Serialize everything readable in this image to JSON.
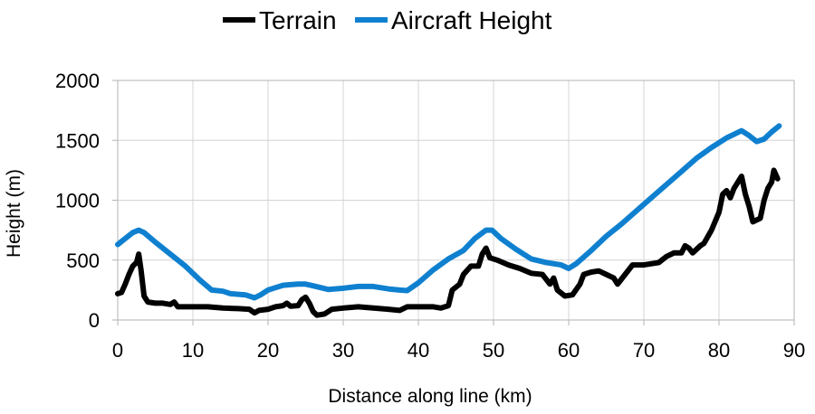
{
  "chart_data": {
    "type": "line",
    "title": "",
    "xlabel": "Distance along line (km)",
    "ylabel": "Height (m)",
    "xlim": [
      0,
      90
    ],
    "ylim": [
      0,
      2000
    ],
    "xticks": [
      "0",
      "10",
      "20",
      "30",
      "40",
      "50",
      "60",
      "70",
      "80",
      "90"
    ],
    "yticks": [
      "0",
      "500",
      "1000",
      "1500",
      "2000"
    ],
    "grid": true,
    "legend_position": "top",
    "series": [
      {
        "name": "Terrain",
        "color": "#000000",
        "points": [
          [
            0,
            220
          ],
          [
            0.5,
            230
          ],
          [
            1,
            300
          ],
          [
            1.5,
            380
          ],
          [
            2,
            450
          ],
          [
            2.5,
            480
          ],
          [
            2.8,
            550
          ],
          [
            3.1,
            420
          ],
          [
            3.5,
            200
          ],
          [
            4,
            150
          ],
          [
            5,
            140
          ],
          [
            6,
            140
          ],
          [
            7,
            130
          ],
          [
            7.5,
            150
          ],
          [
            8,
            110
          ],
          [
            10,
            110
          ],
          [
            12,
            110
          ],
          [
            14,
            100
          ],
          [
            16,
            95
          ],
          [
            17.5,
            90
          ],
          [
            18.2,
            60
          ],
          [
            18.8,
            80
          ],
          [
            20,
            90
          ],
          [
            21,
            110
          ],
          [
            22,
            120
          ],
          [
            22.5,
            140
          ],
          [
            23,
            115
          ],
          [
            24,
            120
          ],
          [
            24.5,
            170
          ],
          [
            25,
            190
          ],
          [
            25.5,
            140
          ],
          [
            26,
            70
          ],
          [
            26.5,
            40
          ],
          [
            27.5,
            50
          ],
          [
            28.5,
            90
          ],
          [
            30,
            100
          ],
          [
            32,
            110
          ],
          [
            34,
            100
          ],
          [
            36,
            90
          ],
          [
            37.5,
            80
          ],
          [
            38.5,
            110
          ],
          [
            40,
            110
          ],
          [
            42,
            110
          ],
          [
            43,
            100
          ],
          [
            44,
            120
          ],
          [
            44.5,
            250
          ],
          [
            45.5,
            300
          ],
          [
            46,
            380
          ],
          [
            47,
            450
          ],
          [
            48,
            450
          ],
          [
            48.5,
            550
          ],
          [
            49,
            600
          ],
          [
            49.5,
            520
          ],
          [
            50.5,
            500
          ],
          [
            52,
            460
          ],
          [
            53.5,
            430
          ],
          [
            55,
            390
          ],
          [
            56.5,
            380
          ],
          [
            57.5,
            300
          ],
          [
            58,
            350
          ],
          [
            58.5,
            250
          ],
          [
            59.5,
            200
          ],
          [
            60.5,
            210
          ],
          [
            61.5,
            300
          ],
          [
            62,
            380
          ],
          [
            63,
            400
          ],
          [
            64,
            410
          ],
          [
            65,
            380
          ],
          [
            66,
            350
          ],
          [
            66.5,
            300
          ],
          [
            67.5,
            380
          ],
          [
            68.5,
            460
          ],
          [
            70,
            460
          ],
          [
            72,
            480
          ],
          [
            73,
            530
          ],
          [
            74,
            560
          ],
          [
            75,
            560
          ],
          [
            75.5,
            620
          ],
          [
            76,
            600
          ],
          [
            76.5,
            560
          ],
          [
            77.5,
            620
          ],
          [
            78,
            640
          ],
          [
            79,
            750
          ],
          [
            80,
            900
          ],
          [
            80.5,
            1050
          ],
          [
            81,
            1080
          ],
          [
            81.5,
            1020
          ],
          [
            82,
            1100
          ],
          [
            82.5,
            1150
          ],
          [
            83,
            1200
          ],
          [
            83.5,
            1050
          ],
          [
            84,
            950
          ],
          [
            84.5,
            820
          ],
          [
            85.5,
            850
          ],
          [
            86,
            1000
          ],
          [
            86.5,
            1100
          ],
          [
            87,
            1150
          ],
          [
            87.3,
            1250
          ],
          [
            87.8,
            1180
          ]
        ]
      },
      {
        "name": "Aircraft Height",
        "color": "#0f80cf",
        "points": [
          [
            0,
            630
          ],
          [
            1,
            680
          ],
          [
            2,
            730
          ],
          [
            2.8,
            750
          ],
          [
            3.5,
            730
          ],
          [
            5,
            650
          ],
          [
            7,
            550
          ],
          [
            9,
            450
          ],
          [
            11,
            330
          ],
          [
            12.5,
            250
          ],
          [
            14,
            240
          ],
          [
            15,
            220
          ],
          [
            17,
            210
          ],
          [
            18.2,
            185
          ],
          [
            19,
            210
          ],
          [
            20,
            250
          ],
          [
            21,
            270
          ],
          [
            22,
            290
          ],
          [
            23,
            295
          ],
          [
            24,
            300
          ],
          [
            25,
            300
          ],
          [
            26,
            285
          ],
          [
            27,
            270
          ],
          [
            28,
            255
          ],
          [
            30,
            265
          ],
          [
            32,
            280
          ],
          [
            34,
            280
          ],
          [
            36,
            260
          ],
          [
            37.5,
            250
          ],
          [
            38.5,
            245
          ],
          [
            40,
            310
          ],
          [
            42,
            420
          ],
          [
            44,
            510
          ],
          [
            46,
            580
          ],
          [
            47.5,
            680
          ],
          [
            49,
            750
          ],
          [
            49.8,
            750
          ],
          [
            51,
            680
          ],
          [
            53,
            590
          ],
          [
            55,
            510
          ],
          [
            57,
            480
          ],
          [
            59,
            460
          ],
          [
            60,
            430
          ],
          [
            61,
            470
          ],
          [
            63,
            580
          ],
          [
            65,
            700
          ],
          [
            67,
            800
          ],
          [
            69,
            910
          ],
          [
            71,
            1020
          ],
          [
            73,
            1130
          ],
          [
            75,
            1240
          ],
          [
            77,
            1350
          ],
          [
            79,
            1440
          ],
          [
            81,
            1520
          ],
          [
            83,
            1580
          ],
          [
            84,
            1540
          ],
          [
            85,
            1490
          ],
          [
            86,
            1510
          ],
          [
            87,
            1570
          ],
          [
            88,
            1620
          ]
        ]
      }
    ]
  }
}
